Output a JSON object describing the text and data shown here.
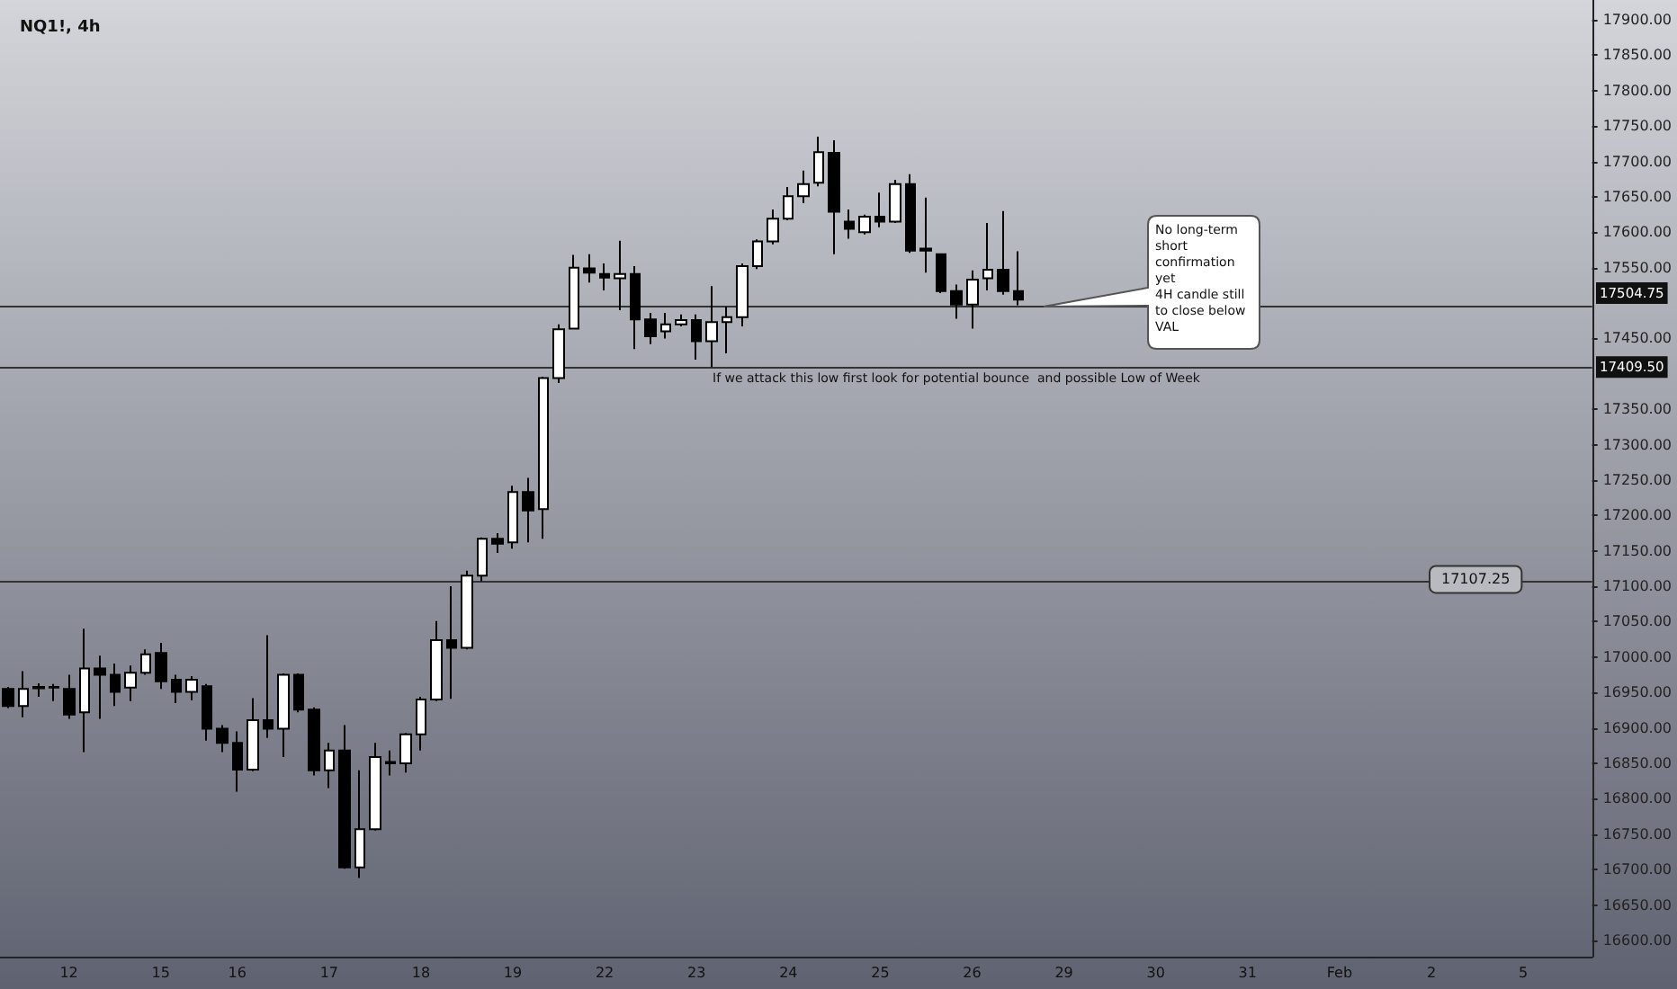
{
  "chart_data": {
    "type": "candlestick",
    "title": "NQ1!, 4h",
    "categories": [
      null,
      null,
      null,
      null,
      "12",
      null,
      null,
      null,
      null,
      null,
      "15",
      null,
      null,
      null,
      null,
      "16",
      null,
      null,
      null,
      null,
      null,
      "17",
      null,
      null,
      null,
      null,
      null,
      "18",
      null,
      null,
      null,
      null,
      null,
      "19",
      null,
      null,
      null,
      null,
      null,
      "22",
      null,
      null,
      null,
      null,
      null,
      "23",
      null,
      null,
      null,
      null,
      null,
      "24",
      null,
      null,
      null,
      null,
      null,
      "25",
      null,
      null,
      null,
      null,
      null,
      "26",
      null,
      null,
      null,
      null,
      null,
      "29",
      null,
      null,
      null,
      null,
      null,
      "30",
      null,
      null,
      null,
      null,
      null,
      "31",
      null,
      null,
      null,
      null,
      null,
      "Feb",
      null,
      null,
      null,
      null,
      null,
      "2",
      null,
      null,
      null,
      null,
      null,
      "5",
      null,
      null,
      null,
      null
    ],
    "ohlc": [
      [
        16955,
        16958,
        16928,
        16931
      ],
      [
        16931,
        16980,
        16915,
        16955
      ],
      [
        16956,
        16963,
        16944,
        16958
      ],
      [
        16957,
        16962,
        16938,
        16958
      ],
      [
        16955,
        16975,
        16913,
        16919
      ],
      [
        16922,
        17040,
        16866,
        16984
      ],
      [
        16984,
        17002,
        16913,
        16975
      ],
      [
        16975,
        16991,
        16931,
        16951
      ],
      [
        16957,
        16988,
        16938,
        16978
      ],
      [
        16978,
        17011,
        16975,
        17004
      ],
      [
        17006,
        17020,
        16955,
        16966
      ],
      [
        16968,
        16975,
        16935,
        16951
      ],
      [
        16951,
        16973,
        16939,
        16968
      ],
      [
        16959,
        16962,
        16882,
        16899
      ],
      [
        16899,
        16904,
        16866,
        16879
      ],
      [
        16879,
        16895,
        16810,
        16841
      ],
      [
        16841,
        16942,
        16839,
        16911
      ],
      [
        16911,
        17031,
        16886,
        16899
      ],
      [
        16899,
        16977,
        16859,
        16975
      ],
      [
        16975,
        16977,
        16922,
        16926
      ],
      [
        16926,
        16929,
        16833,
        16840
      ],
      [
        16840,
        16879,
        16815,
        16868
      ],
      [
        16868,
        16904,
        16701,
        16703
      ],
      [
        16703,
        16840,
        16688,
        16757
      ],
      [
        16757,
        16879,
        16755,
        16859
      ],
      [
        16850,
        16868,
        16833,
        16852
      ],
      [
        16850,
        16893,
        16837,
        16891
      ],
      [
        16891,
        16944,
        16868,
        16940
      ],
      [
        16940,
        17051,
        16938,
        17024
      ],
      [
        17024,
        17100,
        16941,
        17013
      ],
      [
        17013,
        17122,
        17011,
        17115
      ],
      [
        17115,
        17169,
        17107.25,
        17167
      ],
      [
        17167,
        17175,
        17147,
        17160
      ],
      [
        17162,
        17242,
        17153,
        17233
      ],
      [
        17233,
        17253,
        17162,
        17207
      ],
      [
        17209,
        17396,
        17167,
        17394
      ],
      [
        17394,
        17470,
        17387,
        17463
      ],
      [
        17464,
        17568,
        17463,
        17550
      ],
      [
        17549,
        17569,
        17529,
        17543
      ],
      [
        17541,
        17556,
        17518,
        17536
      ],
      [
        17535,
        17588,
        17490,
        17541
      ],
      [
        17541,
        17552,
        17435,
        17477
      ],
      [
        17477,
        17486,
        17442,
        17453
      ],
      [
        17460,
        17486,
        17450,
        17470
      ],
      [
        17470,
        17484,
        17467,
        17476
      ],
      [
        17476,
        17484,
        17420,
        17446
      ],
      [
        17446,
        17524,
        17409.5,
        17473
      ],
      [
        17473,
        17495,
        17429,
        17480
      ],
      [
        17480,
        17556,
        17467,
        17552
      ],
      [
        17552,
        17590,
        17548,
        17587
      ],
      [
        17587,
        17632,
        17583,
        17619
      ],
      [
        17619,
        17664,
        17617,
        17651
      ],
      [
        17651,
        17687,
        17641,
        17668
      ],
      [
        17670,
        17735,
        17665,
        17713
      ],
      [
        17712,
        17730,
        17569,
        17629
      ],
      [
        17615,
        17632,
        17591,
        17605
      ],
      [
        17600,
        17625,
        17597,
        17622
      ],
      [
        17622,
        17656,
        17607,
        17615
      ],
      [
        17615,
        17674,
        17613,
        17668
      ],
      [
        17668,
        17682,
        17571,
        17574
      ],
      [
        17577,
        17649,
        17543,
        17574
      ],
      [
        17569,
        17570,
        17514,
        17517
      ],
      [
        17517,
        17526,
        17478,
        17498
      ],
      [
        17498,
        17546,
        17464,
        17533
      ],
      [
        17535,
        17613,
        17518,
        17547
      ],
      [
        17547,
        17630,
        17512,
        17517
      ],
      [
        17517,
        17573,
        17497,
        17504.75
      ],
      null,
      null,
      null,
      null,
      null,
      null,
      null,
      null,
      null,
      null,
      null,
      null,
      null,
      null,
      null,
      null,
      null,
      null,
      null,
      null,
      null,
      null,
      null,
      null,
      null,
      null,
      null,
      null,
      null,
      null,
      null,
      null,
      null,
      null,
      null,
      null,
      null
    ],
    "ylim": [
      16577,
      17928
    ],
    "yticks": [
      {
        "value": 16600,
        "label": "16600.00"
      },
      {
        "value": 16650,
        "label": "16650.00"
      },
      {
        "value": 16700,
        "label": "16700.00"
      },
      {
        "value": 16750,
        "label": "16750.00"
      },
      {
        "value": 16800,
        "label": "16800.00"
      },
      {
        "value": 16850,
        "label": "16850.00"
      },
      {
        "value": 16900,
        "label": "16900.00"
      },
      {
        "value": 16950,
        "label": "16950.00"
      },
      {
        "value": 17000,
        "label": "17000.00"
      },
      {
        "value": 17050,
        "label": "17050.00"
      },
      {
        "value": 17100,
        "label": "17100.00"
      },
      {
        "value": 17150,
        "label": "17150.00"
      },
      {
        "value": 17200,
        "label": "17200.00"
      },
      {
        "value": 17250,
        "label": "17250.00"
      },
      {
        "value": 17300,
        "label": "17300.00"
      },
      {
        "value": 17350,
        "label": "17350.00"
      },
      {
        "value": 17450,
        "label": "17450.00"
      },
      {
        "value": 17550,
        "label": "17550.00"
      },
      {
        "value": 17600,
        "label": "17600.00"
      },
      {
        "value": 17650,
        "label": "17650.00"
      },
      {
        "value": 17700,
        "label": "17700.00"
      },
      {
        "value": 17750,
        "label": "17750.00"
      },
      {
        "value": 17800,
        "label": "17800.00"
      },
      {
        "value": 17850,
        "label": "17850.00"
      },
      {
        "value": 17900,
        "label": "17900.00"
      }
    ],
    "ref_lines": [
      {
        "axis": "y",
        "value": 17495
      },
      {
        "axis": "y",
        "value": 17409.5,
        "label": "17409.50"
      },
      {
        "axis": "y",
        "value": 17107.25,
        "label": "17107.25"
      }
    ],
    "annotations": [
      {
        "text": "No long-term short confirmation yet\n4H candle still to close below VAL",
        "y": 17495
      },
      {
        "text": "If we attack this low first look for potential bounce  and possible Low of Week",
        "y": 17409.5
      },
      "17504.75"
    ],
    "grid": false
  }
}
